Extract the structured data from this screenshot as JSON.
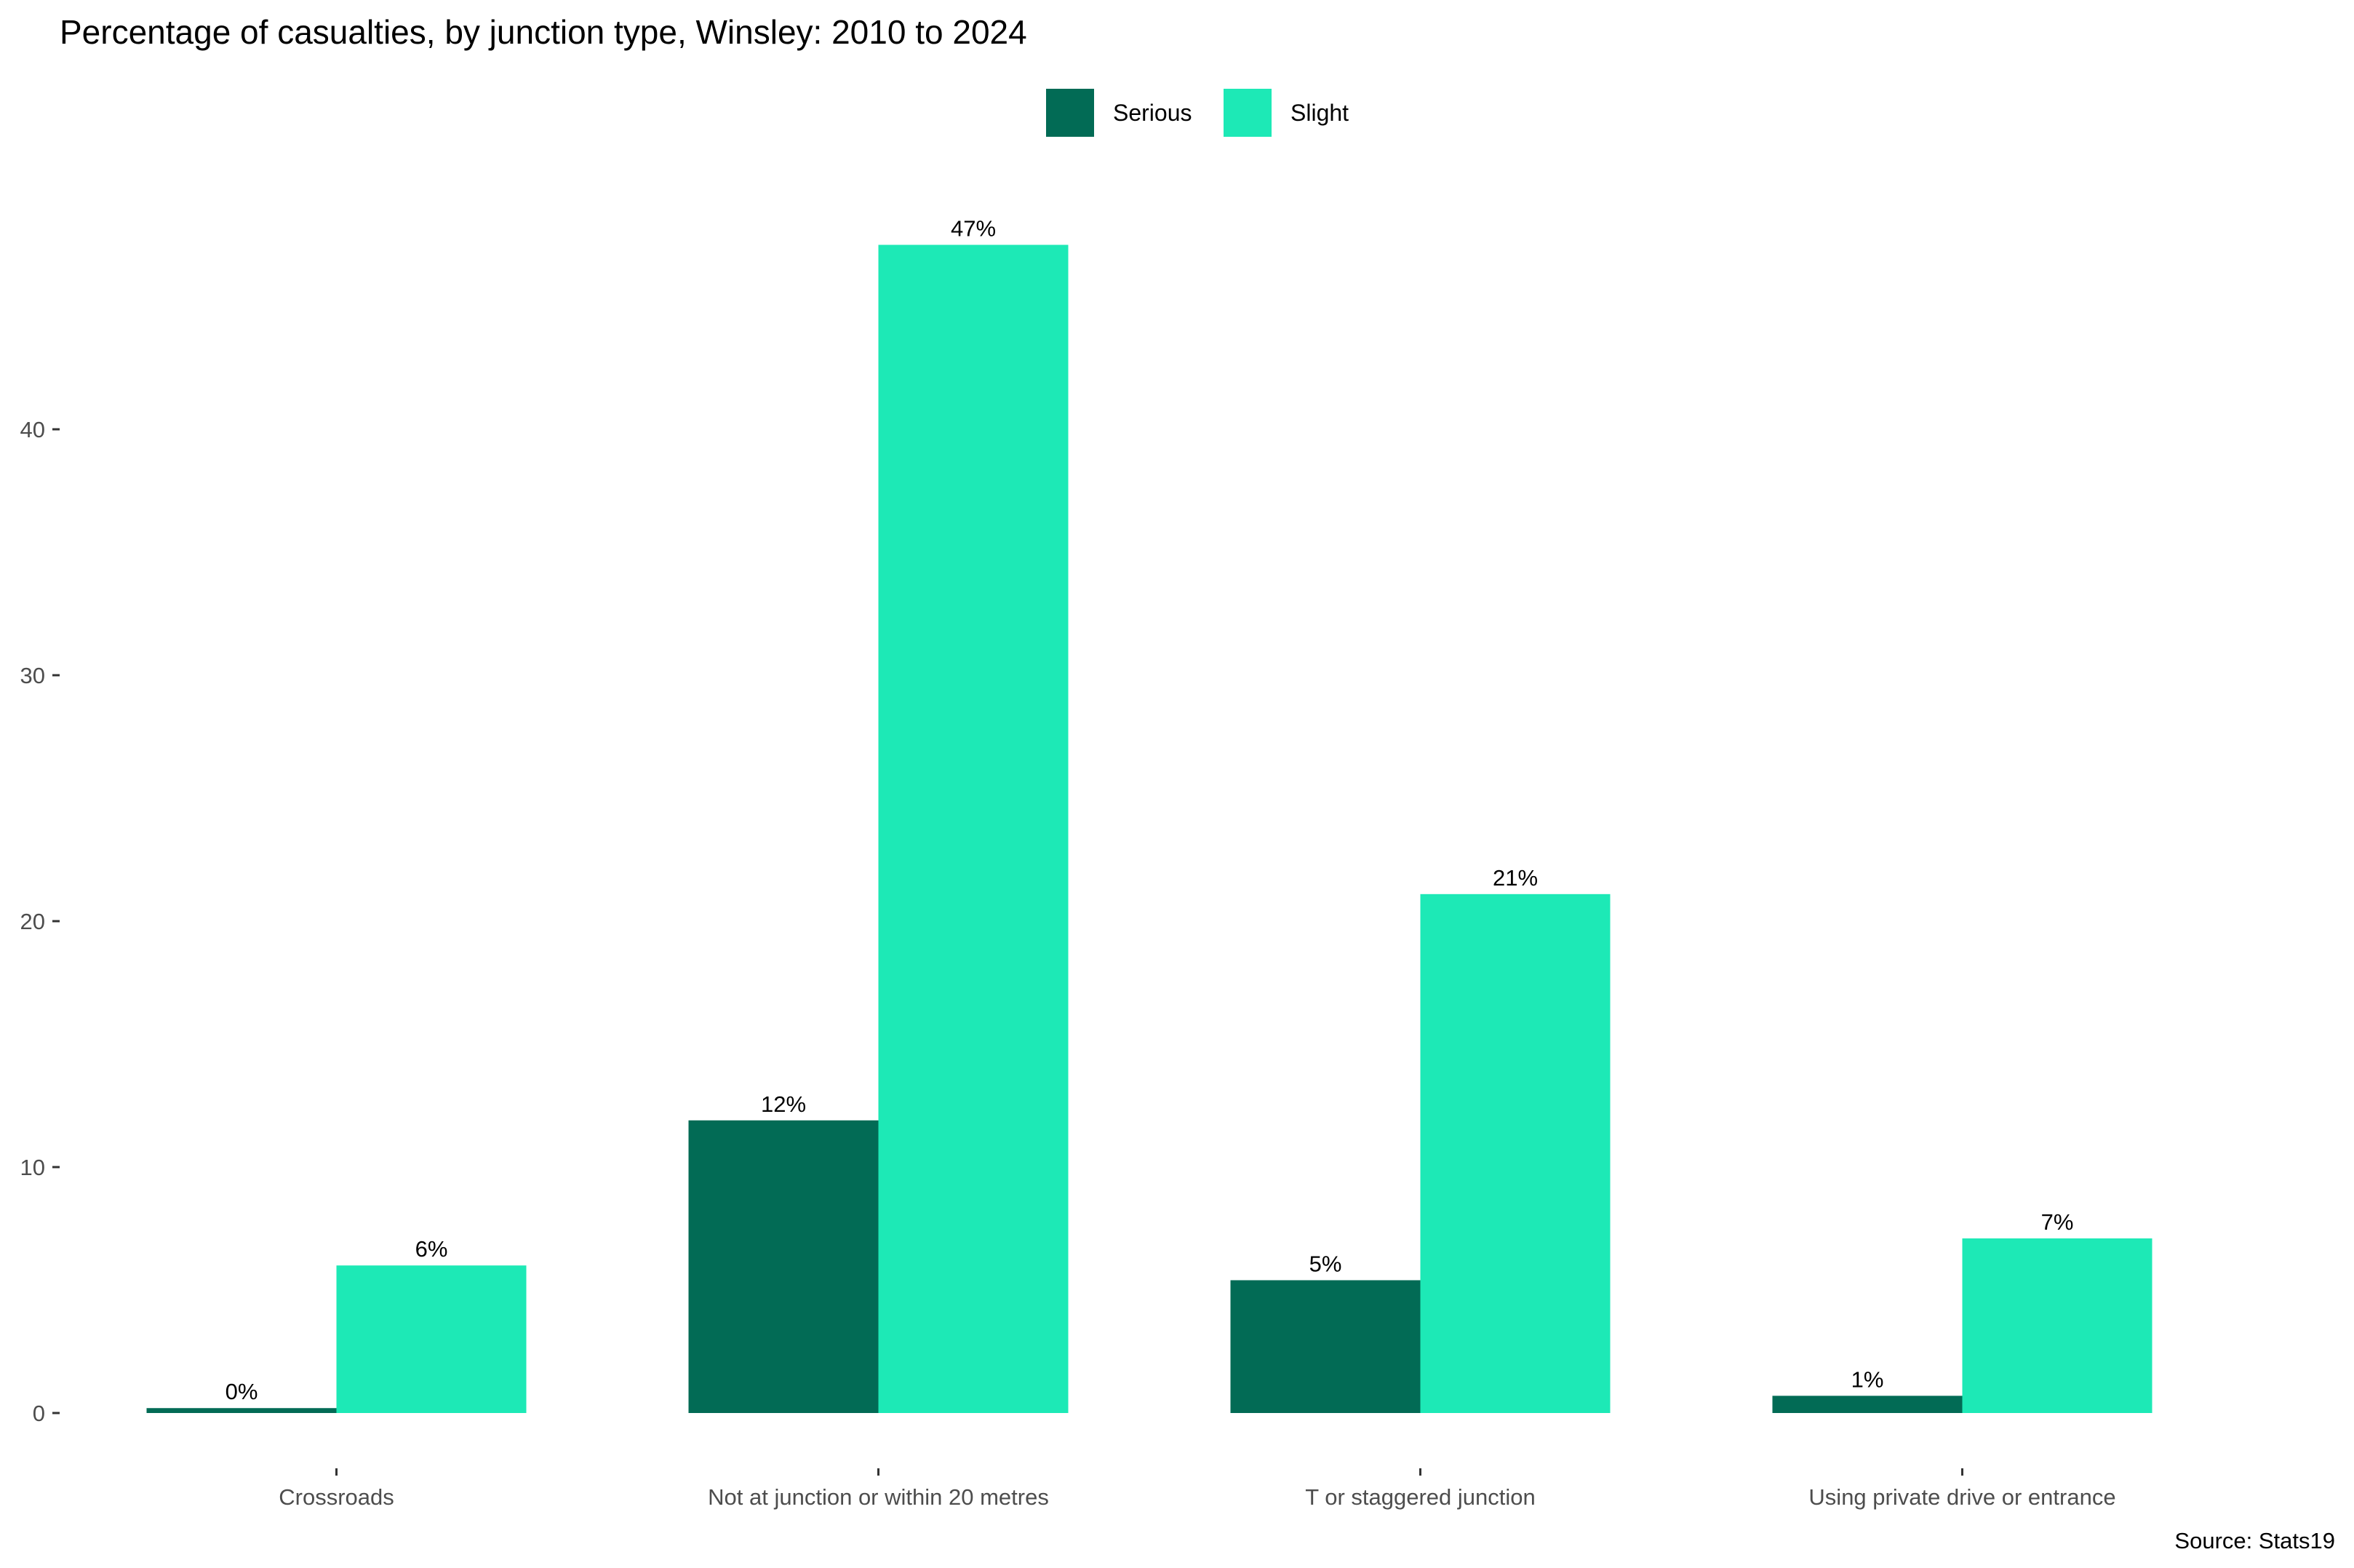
{
  "chart_data": {
    "type": "bar",
    "title": "Percentage of casualties, by junction type, Winsley: 2010 to 2024",
    "xlabel": "",
    "ylabel": "",
    "categories": [
      "Crossroads",
      "Not at junction or within 20 metres",
      "T or staggered junction",
      "Using private drive or entrance"
    ],
    "series": [
      {
        "name": "Serious",
        "color": "#026b55",
        "values": [
          0.2,
          11.9,
          5.4,
          0.7
        ],
        "labels": [
          "0%",
          "12%",
          "5%",
          "1%"
        ]
      },
      {
        "name": "Slight",
        "color": "#1de9b6",
        "values": [
          6.0,
          47.5,
          21.1,
          7.1
        ],
        "labels": [
          "6%",
          "47%",
          "21%",
          "7%"
        ]
      }
    ],
    "ylim": [
      0,
      50
    ],
    "yticks": [
      "0",
      "10",
      "20",
      "30",
      "40"
    ],
    "legend_position": "top-center",
    "grid": false,
    "caption": "Source: Stats19"
  }
}
